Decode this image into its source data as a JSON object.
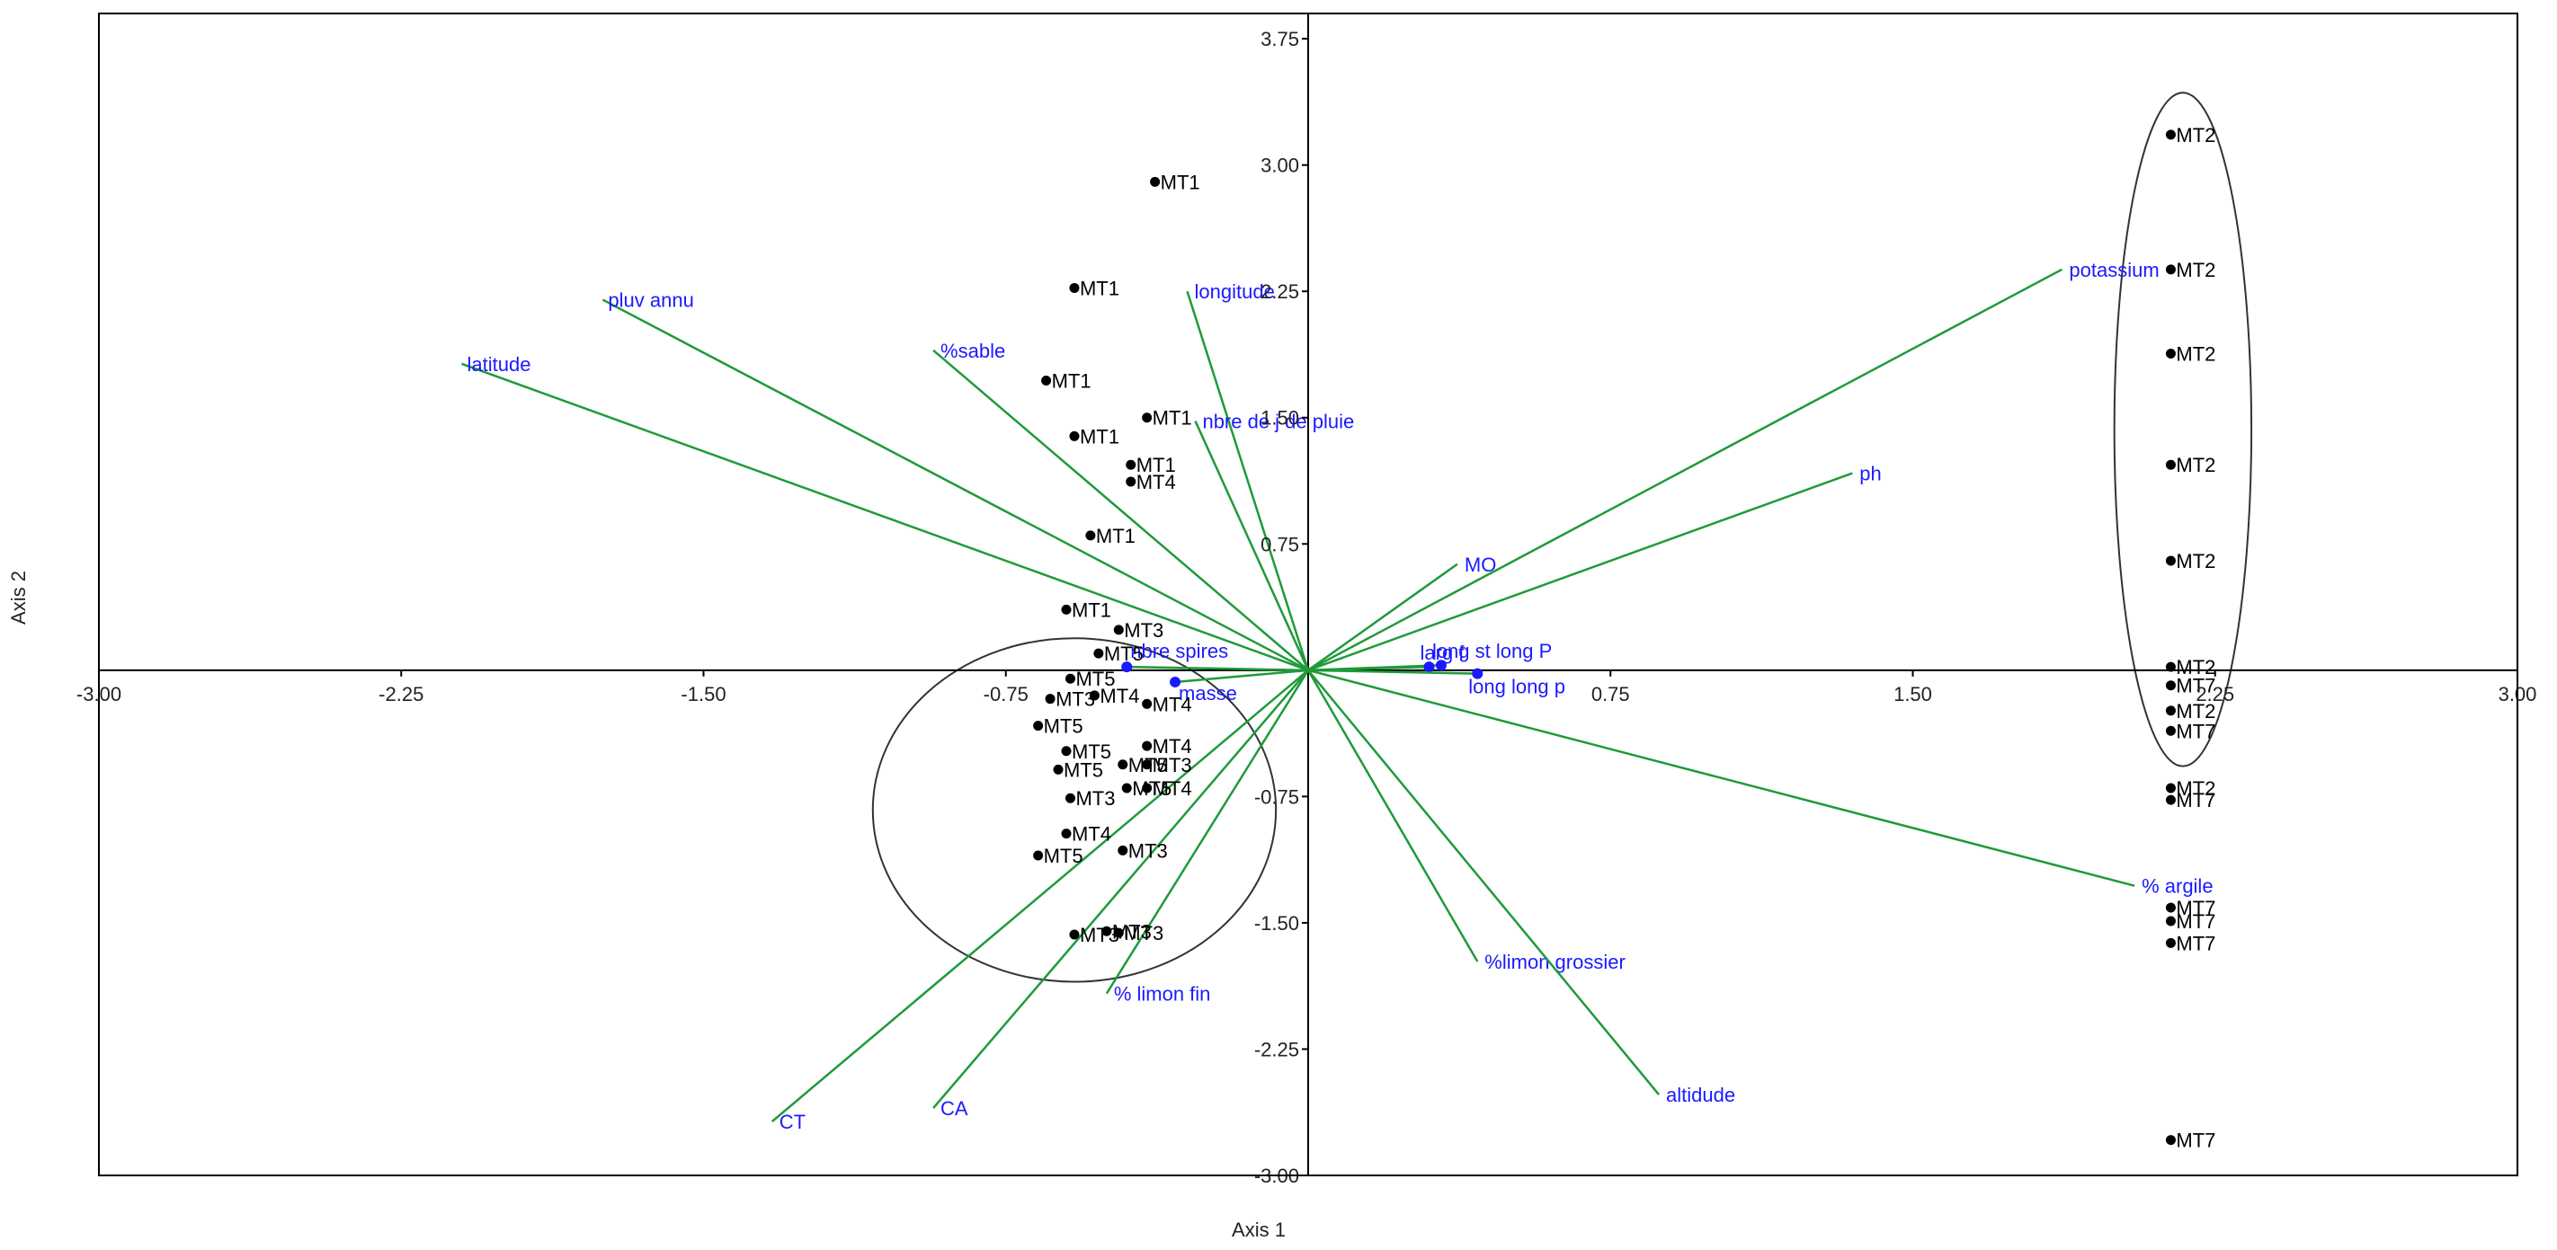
{
  "colors": {
    "vector": "#1f9a3a",
    "vector_label": "#1a1aff",
    "point": "#000000",
    "axis": "#000000",
    "frame": "#000000",
    "ellipse": "#333333"
  },
  "chart_data": {
    "type": "scatter",
    "subtype": "biplot",
    "title": "",
    "xlabel": "Axis 1",
    "ylabel": "Axis 2",
    "xlim": [
      -3.0,
      3.0
    ],
    "ylim": [
      -3.0,
      3.9
    ],
    "grid": false,
    "legend": "none",
    "x_ticks": [
      {
        "v": -3.0,
        "label": "-3.00"
      },
      {
        "v": -2.25,
        "label": "-2.25"
      },
      {
        "v": -1.5,
        "label": "-1.50"
      },
      {
        "v": -0.75,
        "label": "-0.75"
      },
      {
        "v": 0.75,
        "label": "0.75"
      },
      {
        "v": 1.5,
        "label": "1.50"
      },
      {
        "v": 2.25,
        "label": "2.25"
      },
      {
        "v": 3.0,
        "label": "3.00"
      }
    ],
    "y_ticks": [
      {
        "v": 3.75,
        "label": "3.75"
      },
      {
        "v": 3.0,
        "label": "3.00"
      },
      {
        "v": 2.25,
        "label": "2.25"
      },
      {
        "v": 1.5,
        "label": "1.50"
      },
      {
        "v": 0.75,
        "label": "0.75"
      },
      {
        "v": -0.75,
        "label": "-0.75"
      },
      {
        "v": -1.5,
        "label": "-1.50"
      },
      {
        "v": -2.25,
        "label": "-2.25"
      },
      {
        "v": -3.0,
        "label": "-3.00"
      }
    ],
    "vectors": [
      {
        "name": "pluv annu",
        "x": -1.75,
        "y": 2.2
      },
      {
        "name": "latitude",
        "x": -2.1,
        "y": 1.82
      },
      {
        "name": "%sable",
        "x": -0.93,
        "y": 1.9
      },
      {
        "name": "longitude",
        "x": -0.3,
        "y": 2.25
      },
      {
        "name": "nbre de j de pluie",
        "x": -0.28,
        "y": 1.48
      },
      {
        "name": "potassium",
        "x": 1.87,
        "y": 2.38
      },
      {
        "name": "ph",
        "x": 1.35,
        "y": 1.17
      },
      {
        "name": "MO",
        "x": 0.37,
        "y": 0.63
      },
      {
        "name": "long st long P",
        "x": 0.33,
        "y": 0.03
      },
      {
        "name": "larg f",
        "x": 0.3,
        "y": 0.02
      },
      {
        "name": "long long p",
        "x": 0.42,
        "y": -0.02
      },
      {
        "name": "nbre spires",
        "x": -0.45,
        "y": 0.02
      },
      {
        "name": "masse",
        "x": -0.33,
        "y": -0.07
      },
      {
        "name": "% argile",
        "x": 2.05,
        "y": -1.28
      },
      {
        "name": "%limon grossier",
        "x": 0.42,
        "y": -1.73
      },
      {
        "name": "altidude",
        "x": 0.87,
        "y": -2.52
      },
      {
        "name": "% limon fin",
        "x": -0.5,
        "y": -1.92
      },
      {
        "name": "CA",
        "x": -0.93,
        "y": -2.6
      },
      {
        "name": "CT",
        "x": -1.33,
        "y": -2.68
      }
    ],
    "points": [
      {
        "label": "MT1",
        "x": -0.38,
        "y": 2.9
      },
      {
        "label": "MT1",
        "x": -0.58,
        "y": 2.27
      },
      {
        "label": "MT1",
        "x": -0.65,
        "y": 1.72
      },
      {
        "label": "MT1",
        "x": -0.4,
        "y": 1.5
      },
      {
        "label": "MT1",
        "x": -0.58,
        "y": 1.39
      },
      {
        "label": "MT1",
        "x": -0.44,
        "y": 1.22
      },
      {
        "label": "MT4",
        "x": -0.44,
        "y": 1.12
      },
      {
        "label": "MT1",
        "x": -0.54,
        "y": 0.8
      },
      {
        "label": "MT1",
        "x": -0.6,
        "y": 0.36
      },
      {
        "label": "MT3",
        "x": -0.47,
        "y": 0.24
      },
      {
        "label": "MT5",
        "x": -0.52,
        "y": 0.1
      },
      {
        "label": "MT5",
        "x": -0.59,
        "y": -0.05
      },
      {
        "label": "MT3",
        "x": -0.64,
        "y": -0.17
      },
      {
        "label": "MT4",
        "x": -0.53,
        "y": -0.15
      },
      {
        "label": "MT4",
        "x": -0.4,
        "y": -0.2
      },
      {
        "label": "MT5",
        "x": -0.67,
        "y": -0.33
      },
      {
        "label": "MT5",
        "x": -0.6,
        "y": -0.48
      },
      {
        "label": "MT4",
        "x": -0.4,
        "y": -0.45
      },
      {
        "label": "MT5",
        "x": -0.62,
        "y": -0.59
      },
      {
        "label": "MT5",
        "x": -0.46,
        "y": -0.56
      },
      {
        "label": "MT3",
        "x": -0.4,
        "y": -0.56
      },
      {
        "label": "MT4",
        "x": -0.4,
        "y": -0.7
      },
      {
        "label": "MT5",
        "x": -0.45,
        "y": -0.7
      },
      {
        "label": "MT3",
        "x": -0.59,
        "y": -0.76
      },
      {
        "label": "MT4",
        "x": -0.6,
        "y": -0.97
      },
      {
        "label": "MT5",
        "x": -0.67,
        "y": -1.1
      },
      {
        "label": "MT3",
        "x": -0.46,
        "y": -1.07
      },
      {
        "label": "MT3",
        "x": -0.5,
        "y": -1.55
      },
      {
        "label": "MT3",
        "x": -0.58,
        "y": -1.57
      },
      {
        "label": "MT3",
        "x": -0.47,
        "y": -1.56
      },
      {
        "label": "MT2",
        "x": 2.14,
        "y": 3.18
      },
      {
        "label": "MT2",
        "x": 2.14,
        "y": 2.38
      },
      {
        "label": "MT2",
        "x": 2.14,
        "y": 1.88
      },
      {
        "label": "MT2",
        "x": 2.14,
        "y": 1.22
      },
      {
        "label": "MT2",
        "x": 2.14,
        "y": 0.65
      },
      {
        "label": "MT2",
        "x": 2.14,
        "y": 0.02
      },
      {
        "label": "MT7",
        "x": 2.14,
        "y": -0.09
      },
      {
        "label": "MT2",
        "x": 2.14,
        "y": -0.24
      },
      {
        "label": "MT7",
        "x": 2.14,
        "y": -0.36
      },
      {
        "label": "MT2",
        "x": 2.14,
        "y": -0.7
      },
      {
        "label": "MT7",
        "x": 2.14,
        "y": -0.77
      },
      {
        "label": "MT7",
        "x": 2.14,
        "y": -1.41
      },
      {
        "label": "MT7",
        "x": 2.14,
        "y": -1.49
      },
      {
        "label": "MT7",
        "x": 2.14,
        "y": -1.62
      },
      {
        "label": "MT7",
        "x": 2.14,
        "y": -2.79
      }
    ],
    "ellipses": [
      {
        "cx": -0.58,
        "cy": -0.83,
        "rx": 0.5,
        "ry": 1.02
      },
      {
        "cx": 2.17,
        "cy": 1.43,
        "rx": 0.17,
        "ry": 2.0
      }
    ]
  }
}
